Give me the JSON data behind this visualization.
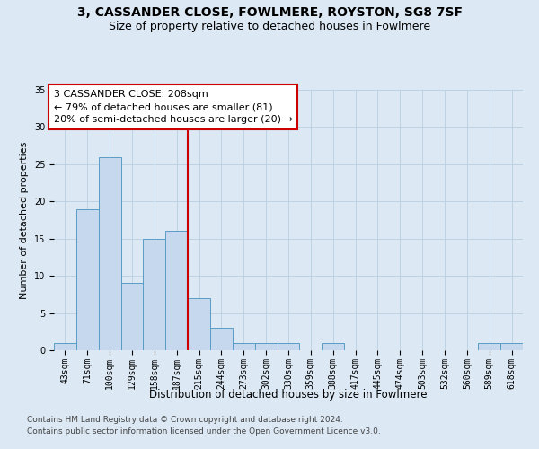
{
  "title": "3, CASSANDER CLOSE, FOWLMERE, ROYSTON, SG8 7SF",
  "subtitle": "Size of property relative to detached houses in Fowlmere",
  "xlabel": "Distribution of detached houses by size in Fowlmere",
  "ylabel": "Number of detached properties",
  "categories": [
    "43sqm",
    "71sqm",
    "100sqm",
    "129sqm",
    "158sqm",
    "187sqm",
    "215sqm",
    "244sqm",
    "273sqm",
    "302sqm",
    "330sqm",
    "359sqm",
    "388sqm",
    "417sqm",
    "445sqm",
    "474sqm",
    "503sqm",
    "532sqm",
    "560sqm",
    "589sqm",
    "618sqm"
  ],
  "values": [
    1,
    19,
    26,
    9,
    15,
    16,
    7,
    3,
    1,
    1,
    1,
    0,
    1,
    0,
    0,
    0,
    0,
    0,
    0,
    1,
    1
  ],
  "bar_color": "#c5d8ed",
  "bar_edge_color": "#5a9cc5",
  "bar_edge_width": 0.7,
  "grid_color": "#b8cfe0",
  "background_color": "#dce9f5",
  "ylim": [
    0,
    35
  ],
  "yticks": [
    0,
    5,
    10,
    15,
    20,
    25,
    30,
    35
  ],
  "property_line_x": 5.5,
  "property_line_color": "#cc0000",
  "annotation_text": "3 CASSANDER CLOSE: 208sqm\n← 79% of detached houses are smaller (81)\n20% of semi-detached houses are larger (20) →",
  "annotation_box_color": "#ffffff",
  "annotation_box_edge": "#cc0000",
  "footer_line1": "Contains HM Land Registry data © Crown copyright and database right 2024.",
  "footer_line2": "Contains public sector information licensed under the Open Government Licence v3.0.",
  "title_fontsize": 10,
  "subtitle_fontsize": 9,
  "xlabel_fontsize": 8.5,
  "ylabel_fontsize": 8,
  "tick_fontsize": 7,
  "annotation_fontsize": 8,
  "footer_fontsize": 6.5
}
